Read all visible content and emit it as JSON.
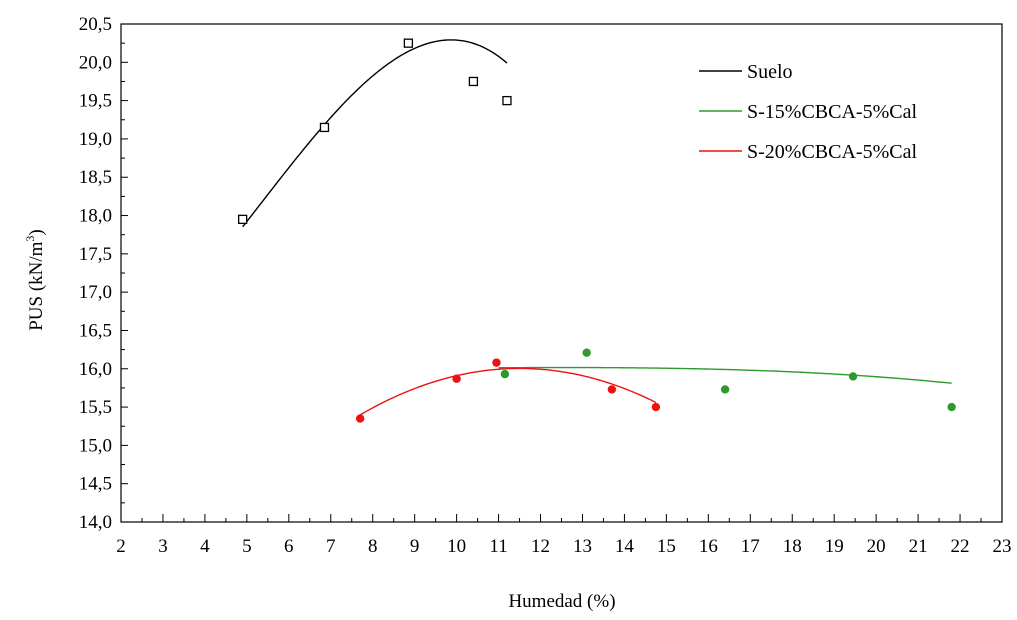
{
  "chart_data": {
    "type": "scatter",
    "title": "",
    "xlabel": "Humedad (%)",
    "ylabel_main": "PUS (kN/m",
    "ylabel_sup": "3",
    "ylabel_end": ")",
    "xlim": [
      2,
      23
    ],
    "ylim": [
      14.0,
      20.5
    ],
    "xticks": [
      2,
      3,
      4,
      5,
      6,
      7,
      8,
      9,
      10,
      11,
      12,
      13,
      14,
      15,
      16,
      17,
      18,
      19,
      20,
      21,
      22,
      23
    ],
    "yticks": [
      14.0,
      14.5,
      15.0,
      15.5,
      16.0,
      16.5,
      17.0,
      17.5,
      18.0,
      18.5,
      19.0,
      19.5,
      20.0,
      20.5
    ],
    "ytick_labels": [
      "14,0",
      "14,5",
      "15,0",
      "15,5",
      "16,0",
      "16,5",
      "17,0",
      "17,5",
      "18,0",
      "18,5",
      "19,0",
      "19,5",
      "20,0",
      "20,5"
    ],
    "grid": false,
    "legend_position": "top-right",
    "series": [
      {
        "name": "Suelo",
        "color": "#000000",
        "marker": "open-square",
        "points": [
          [
            4.9,
            17.95
          ],
          [
            6.85,
            19.15
          ],
          [
            8.85,
            20.25
          ],
          [
            10.4,
            19.75
          ],
          [
            11.2,
            19.5
          ]
        ],
        "fit": {
          "type": "cubic",
          "coefficients": [
            -0.0115,
            0.1846,
            -0.283,
            16.16
          ],
          "x_range": [
            4.9,
            11.2
          ]
        }
      },
      {
        "name": "S-15%CBCA-5%Cal",
        "color": "#2e9a2e",
        "marker": "filled-circle",
        "points": [
          [
            11.15,
            15.93
          ],
          [
            13.1,
            16.21
          ],
          [
            16.4,
            15.73
          ],
          [
            19.45,
            15.9
          ],
          [
            21.8,
            15.5
          ]
        ],
        "fit": {
          "type": "cubic",
          "coefficients": [
            -0.000129,
            0.00365,
            -0.0306,
            16.08
          ],
          "x_range": [
            11.0,
            21.8
          ]
        }
      },
      {
        "name": "S-20%CBCA-5%Cal",
        "color": "#ee1111",
        "marker": "filled-circle",
        "points": [
          [
            7.7,
            15.35
          ],
          [
            10.0,
            15.87
          ],
          [
            10.95,
            16.08
          ],
          [
            13.7,
            15.73
          ],
          [
            14.75,
            15.5
          ]
        ],
        "fit": {
          "type": "quadratic",
          "coefficients": [
            -0.042,
            0.966,
            10.45
          ],
          "x_range": [
            7.7,
            14.75
          ]
        }
      }
    ]
  }
}
